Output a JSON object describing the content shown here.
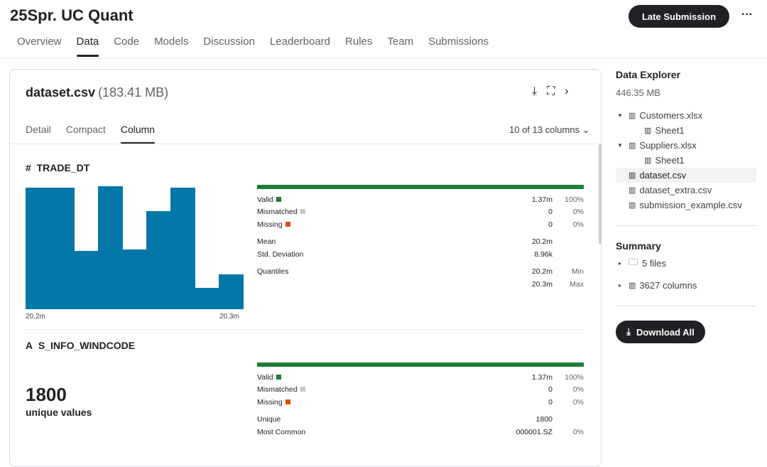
{
  "header": {
    "title": "25Spr. UC Quant",
    "late_submission": "Late Submission",
    "more": "···"
  },
  "nav": [
    "Overview",
    "Data",
    "Code",
    "Models",
    "Discussion",
    "Leaderboard",
    "Rules",
    "Team",
    "Submissions"
  ],
  "file": {
    "name": "dataset.csv",
    "size": "(183.41 MB)",
    "tabs": [
      "Detail",
      "Compact",
      "Column"
    ],
    "columns": "10 of 13 columns ⌄"
  },
  "col1": {
    "type_icon": "#",
    "name": "TRADE_DT",
    "hist_relative_counts": [
      171,
      171,
      82,
      173,
      84,
      138,
      171,
      30,
      49
    ],
    "axis_min": "20.2m",
    "axis_max": "20.3m",
    "rows": [
      [
        "Valid",
        "1.37m",
        "100%"
      ],
      [
        "Mismatched",
        "0",
        "0%"
      ],
      [
        "Missing",
        "0",
        "0%"
      ]
    ],
    "stats": [
      [
        "Mean",
        "20.2m",
        ""
      ],
      [
        "Std. Deviation",
        "8.96k",
        ""
      ]
    ],
    "quantiles": [
      [
        "Quantiles",
        "20.2m",
        "Min"
      ],
      [
        "",
        "20.3m",
        "Max"
      ]
    ]
  },
  "col2": {
    "type_icon": "A",
    "name": "S_INFO_WINDCODE",
    "unique_count": "1800",
    "unique_label": "unique values",
    "rows": [
      [
        "Valid",
        "1.37m",
        "100%"
      ],
      [
        "Mismatched",
        "0",
        "0%"
      ],
      [
        "Missing",
        "0",
        "0%"
      ]
    ],
    "stats": [
      [
        "Unique",
        "1800",
        ""
      ],
      [
        "Most Common",
        "000001.SZ",
        "0%"
      ]
    ]
  },
  "colors": {
    "valid": "#1e7e34",
    "mismatched": "#c6c6c6",
    "missing": "#d94f12",
    "hist": "#0277a8"
  },
  "side": {
    "title": "Data Explorer",
    "size": "446.35 MB",
    "tree": [
      {
        "c": "▼",
        "l": "Customers.xlsx",
        "i": 0
      },
      {
        "c": "",
        "l": "Sheet1",
        "i": 1
      },
      {
        "c": "▼",
        "l": "Suppliers.xlsx",
        "i": 0
      },
      {
        "c": "",
        "l": "Sheet1",
        "i": 1
      },
      {
        "c": "",
        "l": "dataset.csv",
        "i": 0,
        "sel": true
      },
      {
        "c": "",
        "l": "dataset_extra.csv",
        "i": 0
      },
      {
        "c": "",
        "l": "submission_example.csv",
        "i": 0
      }
    ],
    "summary": "Summary",
    "files": "5 files",
    "columns": "3627 columns",
    "download": "Download All"
  }
}
